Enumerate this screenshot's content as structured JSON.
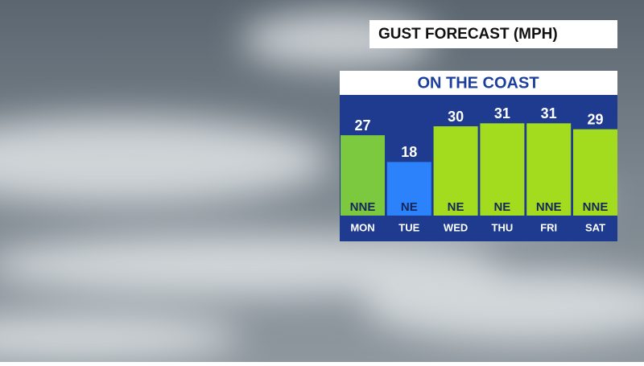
{
  "chart_data": {
    "type": "bar",
    "title": "GUST FORECAST (MPH)",
    "subtitle": "ON THE COAST",
    "categories": [
      "MON",
      "TUE",
      "WED",
      "THU",
      "FRI",
      "SAT"
    ],
    "values": [
      27,
      18,
      30,
      31,
      31,
      29
    ],
    "directions": [
      "NNE",
      "NE",
      "NE",
      "NE",
      "NNE",
      "NNE"
    ],
    "colors": [
      "#7cc940",
      "#2b82fb",
      "#a3dc1e",
      "#a3dc1e",
      "#a3dc1e",
      "#a3dc1e"
    ]
  }
}
